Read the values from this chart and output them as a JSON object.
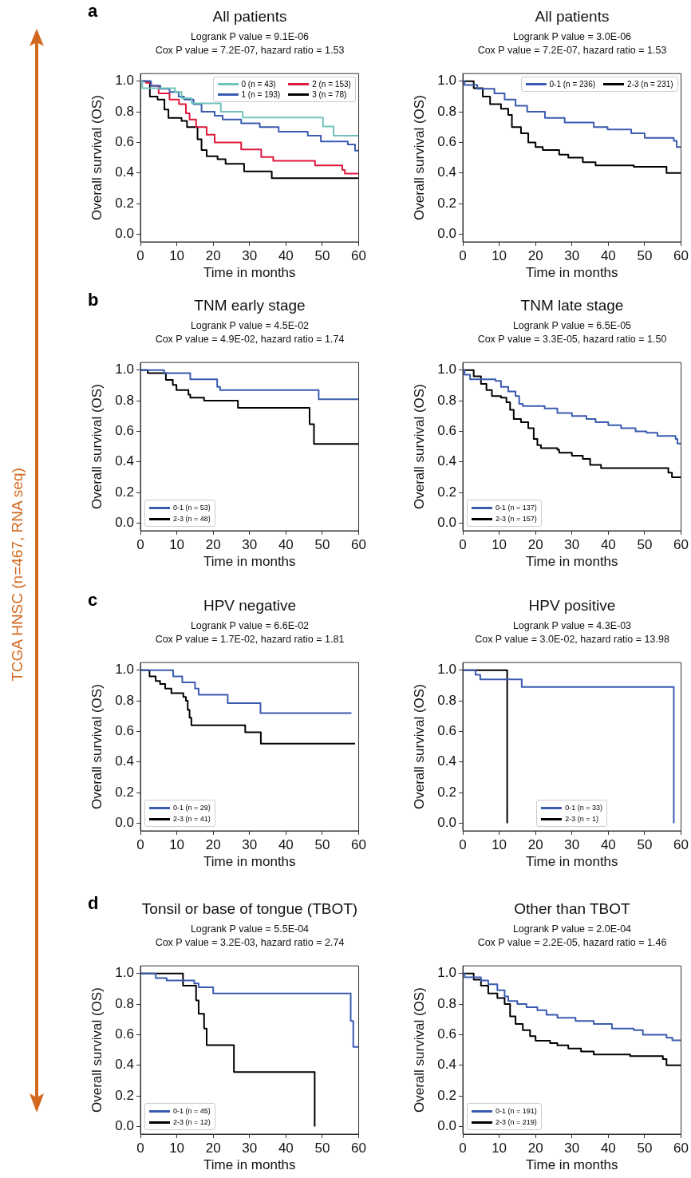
{
  "chart_data": [
    {
      "type": "step",
      "title": "All patients",
      "subtitle": "Logrank P value = 9.1E-06\nCox P value = 7.2E-07, hazard ratio = 1.53",
      "xlabel": "Time in months",
      "ylabel": "Overall survival (OS)",
      "annotations": [
        "a",
        "TCGA HNSC (n=467, RNA seq)"
      ],
      "legend": "top right",
      "xlim": [
        0,
        60
      ],
      "xticks": [
        0,
        10,
        20,
        30,
        40,
        50,
        60
      ],
      "ylim": [
        -0.05,
        1.05
      ],
      "yticks": [
        {
          "value": 0,
          "label": "0.0"
        },
        {
          "value": 0.2,
          "label": "0.2"
        },
        {
          "value": 0.4,
          "label": "0.4"
        },
        {
          "value": 0.6,
          "label": "0.6"
        },
        {
          "value": 0.8,
          "label": "0.8"
        },
        {
          "value": 1,
          "label": "1.0"
        }
      ],
      "series": [
        {
          "name": "0 (n = 43)",
          "color": "#6fc3bb",
          "x": [
            0,
            0.5,
            9.5,
            11.3,
            14.1,
            22.1,
            28.1,
            50.2,
            53.1,
            60
          ],
          "values": [
            1,
            0.955,
            0.93,
            0.889,
            0.856,
            0.8,
            0.763,
            0.704,
            0.644,
            0.644
          ]
        },
        {
          "name": "1 (n = 193)",
          "color": "#3a5bb0",
          "x": [
            0,
            2.9,
            5.5,
            8,
            10.5,
            12,
            14.6,
            16.8,
            20.4,
            22.6,
            27.7,
            32.8,
            38,
            46,
            49.6,
            57,
            59,
            60
          ],
          "values": [
            1,
            0.97,
            0.95,
            0.93,
            0.9,
            0.88,
            0.85,
            0.8,
            0.775,
            0.75,
            0.725,
            0.7,
            0.67,
            0.644,
            0.606,
            0.587,
            0.546,
            0.546
          ]
        },
        {
          "name": "2 (n = 153)",
          "color": "#e0193c",
          "x": [
            0,
            1.5,
            2.9,
            5,
            8,
            10.6,
            12.5,
            13.5,
            15.3,
            18.2,
            20.4,
            27.7,
            33.2,
            36.5,
            48,
            55.5,
            56.2,
            60
          ],
          "values": [
            1,
            0.99,
            0.97,
            0.92,
            0.88,
            0.85,
            0.79,
            0.75,
            0.7,
            0.65,
            0.6,
            0.554,
            0.505,
            0.48,
            0.45,
            0.42,
            0.396,
            0.396
          ]
        },
        {
          "name": "3 (n = 78)",
          "color": "#000000",
          "x": [
            0,
            1.8,
            2.6,
            4.7,
            6.6,
            7.7,
            11.3,
            12.8,
            15.7,
            16.8,
            18.2,
            21.2,
            23.4,
            28.5,
            36.1,
            60
          ],
          "values": [
            1,
            1,
            0.9,
            0.88,
            0.815,
            0.76,
            0.74,
            0.7,
            0.62,
            0.55,
            0.51,
            0.49,
            0.46,
            0.41,
            0.366,
            0.366
          ]
        }
      ]
    },
    {
      "type": "step",
      "title": "All patients",
      "subtitle": "Logrank P value = 3.0E-06\nCox P value = 7.2E-07, hazard ratio = 1.53",
      "xlabel": "Time in months",
      "ylabel": "Overall survival (OS)",
      "legend": "top right",
      "xlim": [
        0,
        60
      ],
      "xticks": [
        0,
        10,
        20,
        30,
        40,
        50,
        60
      ],
      "ylim": [
        -0.05,
        1.05
      ],
      "yticks": [
        {
          "value": 0,
          "label": "0.0"
        },
        {
          "value": 0.2,
          "label": "0.2"
        },
        {
          "value": 0.4,
          "label": "0.4"
        },
        {
          "value": 0.6,
          "label": "0.6"
        },
        {
          "value": 0.8,
          "label": "0.8"
        },
        {
          "value": 1,
          "label": "1.0"
        }
      ],
      "series": [
        {
          "name": "0-1 (n = 236)",
          "color": "#3a5bb0",
          "x": [
            0,
            0.5,
            4,
            8.7,
            11.5,
            14.5,
            17.7,
            22.6,
            28,
            36,
            39.8,
            46.3,
            50,
            58,
            58.8,
            60
          ],
          "values": [
            1,
            0.975,
            0.95,
            0.92,
            0.88,
            0.84,
            0.8,
            0.76,
            0.73,
            0.7,
            0.685,
            0.66,
            0.63,
            0.61,
            0.57,
            0.57
          ]
        },
        {
          "name": "2-3 (n = 231)",
          "color": "#000000",
          "x": [
            0,
            3,
            5.5,
            7.5,
            10.5,
            12.5,
            13.5,
            16,
            18,
            20,
            22,
            26.5,
            29,
            33,
            36.5,
            47,
            56,
            60
          ],
          "values": [
            1,
            0.955,
            0.9,
            0.85,
            0.82,
            0.78,
            0.7,
            0.66,
            0.6,
            0.57,
            0.55,
            0.52,
            0.5,
            0.47,
            0.45,
            0.44,
            0.4,
            0.4
          ]
        }
      ]
    },
    {
      "type": "step",
      "title": "TNM early stage",
      "subtitle": "Logrank P value = 4.5E-02\nCox P value = 4.9E-02, hazard ratio = 1.74",
      "xlabel": "Time in months",
      "ylabel": "Overall survival (OS)",
      "annotations": [
        "b"
      ],
      "legend": "bottom left",
      "xlim": [
        0,
        60
      ],
      "xticks": [
        0,
        10,
        20,
        30,
        40,
        50,
        60
      ],
      "ylim": [
        -0.05,
        1.05
      ],
      "yticks": [
        {
          "value": 0,
          "label": "0.0"
        },
        {
          "value": 0.2,
          "label": "0.2"
        },
        {
          "value": 0.4,
          "label": "0.4"
        },
        {
          "value": 0.6,
          "label": "0.6"
        },
        {
          "value": 0.8,
          "label": "0.8"
        },
        {
          "value": 1,
          "label": "1.0"
        }
      ],
      "series": [
        {
          "name": "0-1 (n = 53)",
          "color": "#3a5bb0",
          "x": [
            0,
            6.5,
            13.7,
            21.1,
            21.9,
            49,
            60
          ],
          "values": [
            1,
            0.98,
            0.94,
            0.89,
            0.87,
            0.81,
            0.81
          ]
        },
        {
          "name": "2-3 (n = 48)",
          "color": "#000000",
          "x": [
            0,
            2,
            7,
            8.9,
            9.9,
            13.2,
            13.7,
            17.5,
            26.8,
            46.5,
            47.7,
            60
          ],
          "values": [
            1,
            0.98,
            0.936,
            0.904,
            0.87,
            0.84,
            0.82,
            0.8,
            0.754,
            0.647,
            0.518,
            0.518
          ]
        }
      ]
    },
    {
      "type": "step",
      "title": "TNM late stage",
      "subtitle": "Logrank P value = 6.5E-05\nCox P value = 3.3E-05, hazard ratio = 1.50",
      "xlabel": "Time in months",
      "ylabel": "Overall survival (OS)",
      "legend": "bottom left",
      "xlim": [
        0,
        60
      ],
      "xticks": [
        0,
        10,
        20,
        30,
        40,
        50,
        60
      ],
      "ylim": [
        -0.05,
        1.05
      ],
      "yticks": [
        {
          "value": 0,
          "label": "0.0"
        },
        {
          "value": 0.2,
          "label": "0.2"
        },
        {
          "value": 0.4,
          "label": "0.4"
        },
        {
          "value": 0.6,
          "label": "0.6"
        },
        {
          "value": 0.8,
          "label": "0.8"
        },
        {
          "value": 1,
          "label": "1.0"
        }
      ],
      "series": [
        {
          "name": "0-1 (n = 137)",
          "color": "#3a5bb0",
          "x": [
            0,
            0.5,
            2,
            9,
            10.5,
            12.5,
            14.5,
            15.5,
            16.5,
            22.5,
            26,
            30,
            34,
            36.5,
            40,
            43.5,
            47.5,
            50.5,
            53.5,
            58.5,
            59,
            60
          ],
          "values": [
            1,
            0.97,
            0.94,
            0.93,
            0.89,
            0.86,
            0.83,
            0.78,
            0.765,
            0.75,
            0.72,
            0.7,
            0.68,
            0.66,
            0.64,
            0.62,
            0.6,
            0.59,
            0.57,
            0.55,
            0.52,
            0.52
          ]
        },
        {
          "name": "2-3 (n = 157)",
          "color": "#000000",
          "x": [
            0,
            3,
            5,
            6.5,
            8,
            10.5,
            12,
            13,
            14,
            16,
            18,
            19.5,
            20.5,
            21.5,
            26,
            26.5,
            30,
            33,
            35,
            38,
            56.5,
            57.5,
            60
          ],
          "values": [
            1,
            0.96,
            0.91,
            0.87,
            0.83,
            0.82,
            0.79,
            0.74,
            0.68,
            0.66,
            0.62,
            0.55,
            0.51,
            0.49,
            0.48,
            0.46,
            0.44,
            0.42,
            0.38,
            0.36,
            0.33,
            0.3,
            0.3
          ]
        }
      ]
    },
    {
      "type": "step",
      "title": "HPV negative",
      "subtitle": "Logrank P value = 6.6E-02\nCox P value = 1.7E-02, hazard ratio = 1.81",
      "xlabel": "Time in months",
      "ylabel": "Overall survival (OS)",
      "annotations": [
        "c"
      ],
      "legend": "bottom left",
      "xlim": [
        0,
        60
      ],
      "xticks": [
        0,
        10,
        20,
        30,
        40,
        50,
        60
      ],
      "ylim": [
        -0.05,
        1.05
      ],
      "yticks": [
        {
          "value": 0,
          "label": "0.0"
        },
        {
          "value": 0.2,
          "label": "0.2"
        },
        {
          "value": 0.4,
          "label": "0.4"
        },
        {
          "value": 0.6,
          "label": "0.6"
        },
        {
          "value": 0.8,
          "label": "0.8"
        },
        {
          "value": 1,
          "label": "1.0"
        }
      ],
      "series": [
        {
          "name": "0-1 (n = 29)",
          "color": "#3a5bb0",
          "x": [
            0,
            9,
            11.5,
            15,
            16,
            24,
            33,
            58
          ],
          "values": [
            1,
            0.96,
            0.92,
            0.88,
            0.84,
            0.785,
            0.72,
            0.72
          ]
        },
        {
          "name": "2-3 (n = 41)",
          "color": "#000000",
          "x": [
            0,
            2.5,
            4.2,
            5.4,
            6.8,
            8.5,
            11.8,
            12.5,
            13,
            13.5,
            14,
            28.8,
            33.1,
            59
          ],
          "values": [
            1,
            0.96,
            0.93,
            0.91,
            0.88,
            0.85,
            0.826,
            0.8,
            0.74,
            0.69,
            0.64,
            0.595,
            0.52,
            0.52
          ]
        }
      ]
    },
    {
      "type": "step",
      "title": "HPV positive",
      "subtitle": "Logrank P value = 4.3E-03\nCox P value = 3.0E-02, hazard ratio = 13.98",
      "xlabel": "Time in months",
      "ylabel": "Overall survival (OS)",
      "legend": "bottom",
      "xlim": [
        0,
        60
      ],
      "xticks": [
        0,
        10,
        20,
        30,
        40,
        50,
        60
      ],
      "ylim": [
        -0.05,
        1.05
      ],
      "yticks": [
        {
          "value": 0,
          "label": "0.0"
        },
        {
          "value": 0.2,
          "label": "0.2"
        },
        {
          "value": 0.4,
          "label": "0.4"
        },
        {
          "value": 0.6,
          "label": "0.6"
        },
        {
          "value": 0.8,
          "label": "0.8"
        },
        {
          "value": 1,
          "label": "1.0"
        }
      ],
      "series": [
        {
          "name": "0-1 (n = 33)",
          "color": "#3a5bb0",
          "x": [
            0,
            3.5,
            4.8,
            16.2,
            58
          ],
          "values": [
            1,
            0.97,
            0.94,
            0.89,
            0
          ]
        },
        {
          "name": "2-3 (n = 1)",
          "color": "#000000",
          "x": [
            0,
            12.2
          ],
          "values": [
            1,
            0
          ]
        }
      ]
    },
    {
      "type": "step",
      "title": "Tonsil or base of tongue (TBOT)",
      "subtitle": "Logrank P value = 5.5E-04\nCox P value = 3.2E-03, hazard ratio = 2.74",
      "xlabel": "Time in months",
      "ylabel": "Overall survival (OS)",
      "annotations": [
        "d"
      ],
      "legend": "bottom left",
      "xlim": [
        0,
        60
      ],
      "xticks": [
        0,
        10,
        20,
        30,
        40,
        50,
        60
      ],
      "ylim": [
        -0.05,
        1.05
      ],
      "yticks": [
        {
          "value": 0,
          "label": "0.0"
        },
        {
          "value": 0.2,
          "label": "0.2"
        },
        {
          "value": 0.4,
          "label": "0.4"
        },
        {
          "value": 0.6,
          "label": "0.6"
        },
        {
          "value": 0.8,
          "label": "0.8"
        },
        {
          "value": 1,
          "label": "1.0"
        }
      ],
      "series": [
        {
          "name": "0-1 (n = 45)",
          "color": "#3a5bb0",
          "x": [
            0,
            4.2,
            7.2,
            14.8,
            16,
            20,
            57.8,
            58.5,
            60
          ],
          "values": [
            1,
            0.97,
            0.955,
            0.935,
            0.91,
            0.87,
            0.69,
            0.52,
            0.52
          ]
        },
        {
          "name": "2-3 (n = 12)",
          "color": "#000000",
          "x": [
            0,
            11.7,
            15.3,
            16,
            17.5,
            18.2,
            25.7,
            47.9
          ],
          "values": [
            1,
            0.92,
            0.824,
            0.736,
            0.64,
            0.532,
            0.356,
            0
          ]
        }
      ]
    },
    {
      "type": "step",
      "title": "Other than TBOT",
      "subtitle": "Logrank P value = 2.0E-04\nCox P value = 2.2E-05, hazard ratio = 1.46",
      "xlabel": "Time in months",
      "ylabel": "Overall survival (OS)",
      "legend": "bottom left",
      "xlim": [
        0,
        60
      ],
      "xticks": [
        0,
        10,
        20,
        30,
        40,
        50,
        60
      ],
      "ylim": [
        -0.05,
        1.05
      ],
      "yticks": [
        {
          "value": 0,
          "label": "0.0"
        },
        {
          "value": 0.2,
          "label": "0.2"
        },
        {
          "value": 0.4,
          "label": "0.4"
        },
        {
          "value": 0.6,
          "label": "0.6"
        },
        {
          "value": 0.8,
          "label": "0.8"
        },
        {
          "value": 1,
          "label": "1.0"
        }
      ],
      "series": [
        {
          "name": "0-1 (n = 191)",
          "color": "#3a5bb0",
          "x": [
            0,
            0.5,
            5,
            7,
            9.5,
            11.5,
            12.5,
            15,
            17.5,
            20.5,
            23,
            26,
            31,
            36,
            41,
            47,
            49.5,
            56,
            57.6,
            60
          ],
          "values": [
            1,
            0.975,
            0.955,
            0.93,
            0.89,
            0.85,
            0.82,
            0.8,
            0.78,
            0.76,
            0.73,
            0.71,
            0.69,
            0.67,
            0.64,
            0.63,
            0.6,
            0.58,
            0.563,
            0.563
          ]
        },
        {
          "name": "2-3 (n = 219)",
          "color": "#000000",
          "x": [
            0,
            2,
            3,
            5,
            7,
            9.5,
            11.5,
            13,
            14.5,
            16.5,
            18.5,
            20,
            24,
            26,
            29,
            32.5,
            36,
            46,
            55,
            56,
            60
          ],
          "values": [
            1,
            1,
            0.96,
            0.92,
            0.87,
            0.84,
            0.8,
            0.72,
            0.67,
            0.63,
            0.59,
            0.56,
            0.545,
            0.53,
            0.51,
            0.49,
            0.47,
            0.46,
            0.44,
            0.4,
            0.4
          ]
        }
      ]
    }
  ]
}
